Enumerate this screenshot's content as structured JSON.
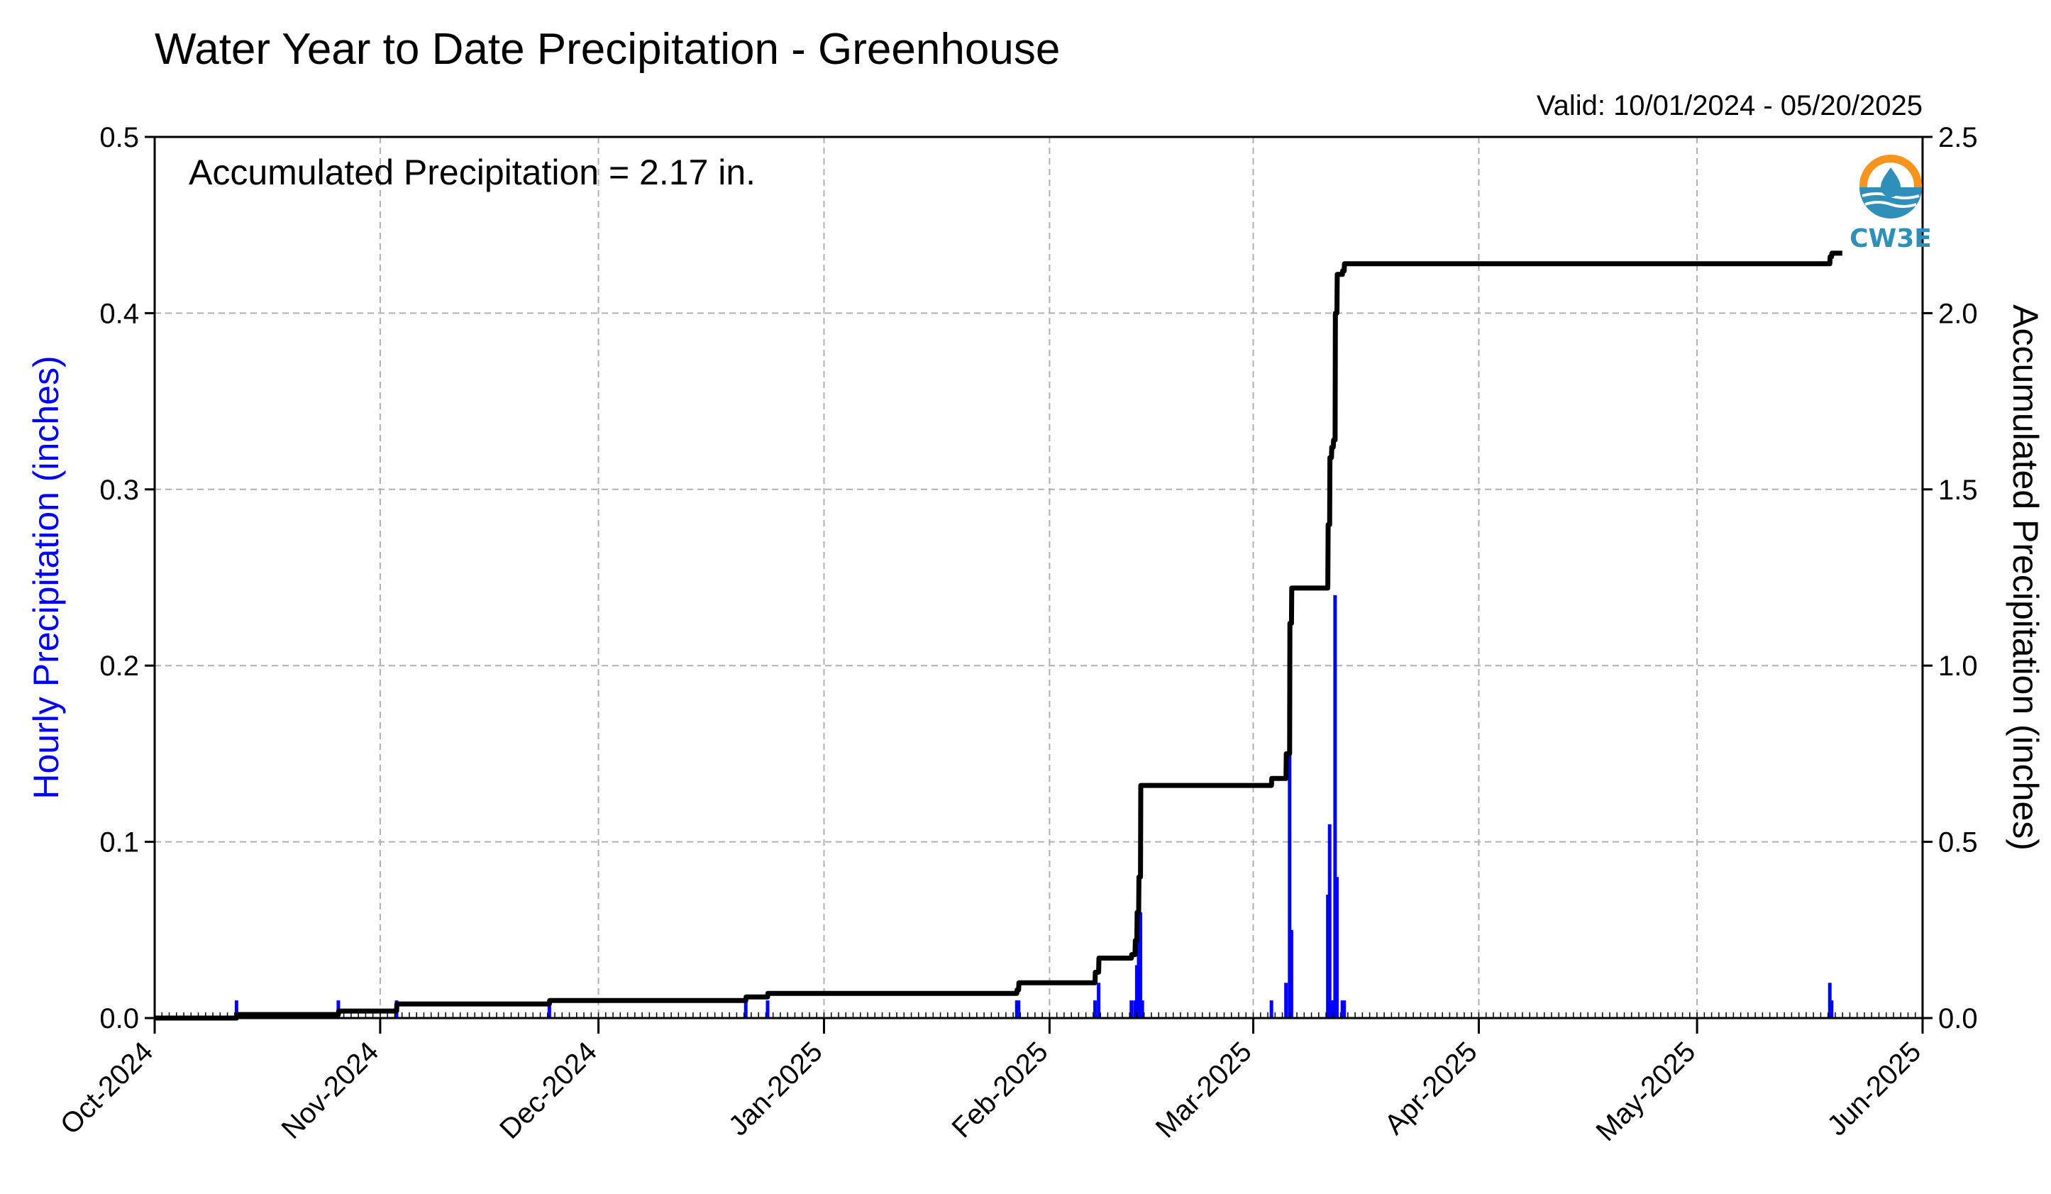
{
  "chart_data": {
    "type": "bar+line",
    "title": "Water Year to Date Precipitation - Greenhouse",
    "subtitle": "Valid: 10/01/2024 - 05/20/2025",
    "annotation": "Accumulated Precipitation = 2.17 in.",
    "logo_text": "CW3E",
    "ylabel_left": "Hourly Precipitation (inches)",
    "ylabel_right": "Accumulated Precipitation (inches)",
    "xlim": [
      "2024-10-01",
      "2025-06-01"
    ],
    "ylim_left": [
      0,
      0.5
    ],
    "ylim_right": [
      0,
      2.5
    ],
    "x_tick_labels": [
      "Oct-2024",
      "Nov-2024",
      "Dec-2024",
      "Jan-2025",
      "Feb-2025",
      "Mar-2025",
      "Apr-2025",
      "May-2025",
      "Jun-2025"
    ],
    "x_tick_dates": [
      "2024-10-01",
      "2024-11-01",
      "2024-12-01",
      "2025-01-01",
      "2025-02-01",
      "2025-03-01",
      "2025-04-01",
      "2025-05-01",
      "2025-06-01"
    ],
    "y_left_tick_labels": [
      "0.0",
      "0.1",
      "0.2",
      "0.3",
      "0.4",
      "0.5"
    ],
    "y_left_ticks": [
      0,
      0.1,
      0.2,
      0.3,
      0.4,
      0.5
    ],
    "y_right_tick_labels": [
      "0.0",
      "0.5",
      "1.0",
      "1.5",
      "2.0",
      "2.5"
    ],
    "y_right_ticks": [
      0,
      0.5,
      1.0,
      1.5,
      2.0,
      2.5
    ],
    "grid": true,
    "colors": {
      "hourly": "#0000ff",
      "accumulated": "#000000",
      "logo_orange": "#f7941d",
      "logo_blue": "#2e8fb8"
    },
    "series": [
      {
        "type": "bar",
        "axis": "left",
        "points": [
          [
            "2024-10-12T06:00",
            0.01
          ],
          [
            "2024-10-26T06:00",
            0.01
          ],
          [
            "2024-11-03T06:00",
            0.01
          ],
          [
            "2024-11-24T06:00",
            0.01
          ],
          [
            "2024-12-21T06:00",
            0.01
          ],
          [
            "2024-12-24T06:00",
            0.01
          ],
          [
            "2025-01-27T12:00",
            0.01
          ],
          [
            "2025-01-27T18:00",
            0.01
          ],
          [
            "2025-02-07T06:00",
            0.01
          ],
          [
            "2025-02-07T18:00",
            0.02
          ],
          [
            "2025-02-12T06:00",
            0.01
          ],
          [
            "2025-02-12T18:00",
            0.01
          ],
          [
            "2025-02-13T00:00",
            0.03
          ],
          [
            "2025-02-13T06:00",
            0.05
          ],
          [
            "2025-02-13T12:00",
            0.06
          ],
          [
            "2025-02-13T18:00",
            0.01
          ],
          [
            "2025-03-03T12:00",
            0.01
          ],
          [
            "2025-03-05T12:00",
            0.02
          ],
          [
            "2025-03-06T00:00",
            0.15
          ],
          [
            "2025-03-06T06:00",
            0.05
          ],
          [
            "2025-03-11T06:00",
            0.07
          ],
          [
            "2025-03-11T12:00",
            0.11
          ],
          [
            "2025-03-11T18:00",
            0.01
          ],
          [
            "2025-03-12T00:00",
            0.01
          ],
          [
            "2025-03-12T06:00",
            0.24
          ],
          [
            "2025-03-12T12:00",
            0.08
          ],
          [
            "2025-03-13T06:00",
            0.01
          ],
          [
            "2025-03-13T12:00",
            0.01
          ],
          [
            "2025-05-19T06:00",
            0.02
          ],
          [
            "2025-05-19T12:00",
            0.01
          ]
        ]
      },
      {
        "type": "line",
        "axis": "right",
        "points": [
          [
            "2024-10-01T00:00",
            0.0
          ],
          [
            "2024-10-12T06:00",
            0.0
          ],
          [
            "2024-10-12T07:00",
            0.01
          ],
          [
            "2024-10-26T06:00",
            0.01
          ],
          [
            "2024-10-26T07:00",
            0.02
          ],
          [
            "2024-11-03T06:00",
            0.02
          ],
          [
            "2024-11-03T07:00",
            0.04
          ],
          [
            "2024-11-24T06:00",
            0.04
          ],
          [
            "2024-11-24T07:00",
            0.05
          ],
          [
            "2024-12-21T06:00",
            0.05
          ],
          [
            "2024-12-21T07:00",
            0.06
          ],
          [
            "2024-12-24T06:00",
            0.06
          ],
          [
            "2024-12-24T07:00",
            0.07
          ],
          [
            "2025-01-27T12:00",
            0.07
          ],
          [
            "2025-01-27T13:00",
            0.08
          ],
          [
            "2025-01-27T18:00",
            0.08
          ],
          [
            "2025-01-27T19:00",
            0.1
          ],
          [
            "2025-02-07T06:00",
            0.1
          ],
          [
            "2025-02-07T07:00",
            0.13
          ],
          [
            "2025-02-07T18:00",
            0.13
          ],
          [
            "2025-02-07T19:00",
            0.17
          ],
          [
            "2025-02-12T06:00",
            0.17
          ],
          [
            "2025-02-12T07:00",
            0.18
          ],
          [
            "2025-02-12T18:00",
            0.18
          ],
          [
            "2025-02-12T19:00",
            0.22
          ],
          [
            "2025-02-13T00:00",
            0.22
          ],
          [
            "2025-02-13T01:00",
            0.3
          ],
          [
            "2025-02-13T06:00",
            0.3
          ],
          [
            "2025-02-13T07:00",
            0.4
          ],
          [
            "2025-02-13T12:00",
            0.4
          ],
          [
            "2025-02-13T13:00",
            0.66
          ],
          [
            "2025-03-03T12:00",
            0.66
          ],
          [
            "2025-03-03T13:00",
            0.68
          ],
          [
            "2025-03-05T12:00",
            0.68
          ],
          [
            "2025-03-05T13:00",
            0.75
          ],
          [
            "2025-03-06T00:00",
            0.75
          ],
          [
            "2025-03-06T01:00",
            1.12
          ],
          [
            "2025-03-06T06:00",
            1.12
          ],
          [
            "2025-03-06T07:00",
            1.22
          ],
          [
            "2025-03-11T06:00",
            1.22
          ],
          [
            "2025-03-11T07:00",
            1.4
          ],
          [
            "2025-03-11T12:00",
            1.4
          ],
          [
            "2025-03-11T13:00",
            1.59
          ],
          [
            "2025-03-11T18:00",
            1.59
          ],
          [
            "2025-03-11T19:00",
            1.62
          ],
          [
            "2025-03-12T00:00",
            1.62
          ],
          [
            "2025-03-12T01:00",
            1.64
          ],
          [
            "2025-03-12T06:00",
            1.64
          ],
          [
            "2025-03-12T07:00",
            2.0
          ],
          [
            "2025-03-12T12:00",
            2.0
          ],
          [
            "2025-03-12T13:00",
            2.11
          ],
          [
            "2025-03-13T06:00",
            2.11
          ],
          [
            "2025-03-13T07:00",
            2.12
          ],
          [
            "2025-03-13T12:00",
            2.12
          ],
          [
            "2025-03-13T13:00",
            2.14
          ],
          [
            "2025-05-19T06:00",
            2.14
          ],
          [
            "2025-05-19T07:00",
            2.16
          ],
          [
            "2025-05-19T12:00",
            2.16
          ],
          [
            "2025-05-19T13:00",
            2.17
          ],
          [
            "2025-05-20T23:00",
            2.17
          ]
        ]
      }
    ]
  }
}
